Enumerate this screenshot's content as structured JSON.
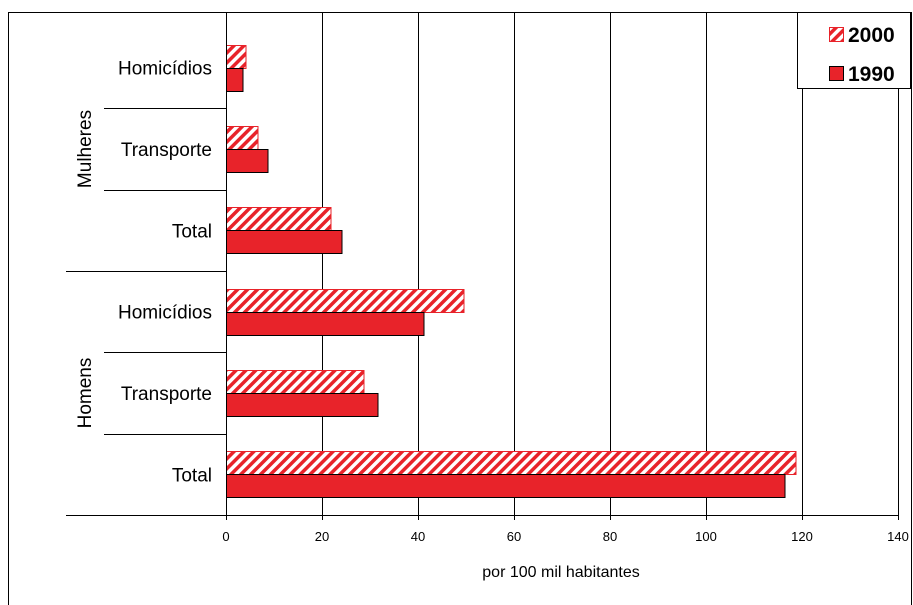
{
  "chart_data": {
    "type": "bar",
    "orientation": "horizontal",
    "groups": [
      {
        "name": "Mulheres",
        "categories": [
          "Homicídios",
          "Transporte",
          "Total"
        ]
      },
      {
        "name": "Homens",
        "categories": [
          "Homicídios",
          "Transporte",
          "Total"
        ]
      }
    ],
    "series": [
      {
        "name": "2000",
        "hatched": true,
        "color": "#e8232a",
        "values": [
          4.2,
          6.7,
          21.9,
          49.6,
          28.8,
          118.8
        ]
      },
      {
        "name": "1990",
        "hatched": false,
        "color": "#e8232a",
        "values": [
          3.5,
          8.8,
          24.2,
          41.3,
          31.7,
          116.5
        ]
      }
    ],
    "xlabel": "por 100 mil habitantes",
    "xlim": [
      0,
      140
    ],
    "xticks": [
      0,
      20,
      40,
      60,
      80,
      100,
      120,
      140
    ],
    "grid": true,
    "legend": "top-right"
  }
}
